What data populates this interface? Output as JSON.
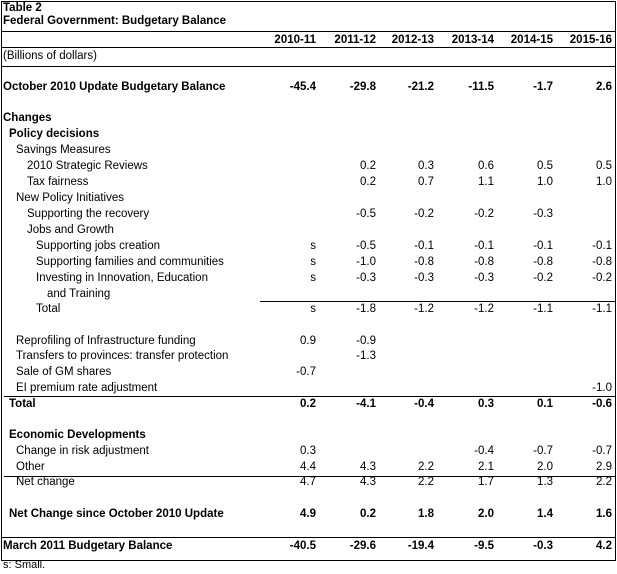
{
  "table": {
    "label": "Table 2",
    "title": "Federal Government: Budgetary Balance",
    "units": "(Billions of dollars)",
    "columns": [
      "2010-11",
      "2011-12",
      "2012-13",
      "2013-14",
      "2014-15",
      "2015-16"
    ],
    "rows": [
      {
        "label": "October 2010 Update Budgetary Balance",
        "indent": 0,
        "bold": true,
        "values": [
          "-45.4",
          "-29.8",
          "-21.2",
          "-11.5",
          "-1.7",
          "2.6"
        ]
      },
      {
        "label": "Changes",
        "indent": 0,
        "bold": true,
        "values": []
      },
      {
        "label": "Policy decisions",
        "indent": 1,
        "bold": true,
        "values": []
      },
      {
        "label": "Savings Measures",
        "indent": 2,
        "bold": false,
        "values": []
      },
      {
        "label": "2010 Strategic Reviews",
        "indent": 3,
        "bold": false,
        "values": [
          "",
          "0.2",
          "0.3",
          "0.6",
          "0.5",
          "0.5"
        ]
      },
      {
        "label": "Tax fairness",
        "indent": 3,
        "bold": false,
        "values": [
          "",
          "0.2",
          "0.7",
          "1.1",
          "1.0",
          "1.0"
        ]
      },
      {
        "label": "New Policy Initiatives",
        "indent": 2,
        "bold": false,
        "values": []
      },
      {
        "label": "Supporting the recovery",
        "indent": 3,
        "bold": false,
        "values": [
          "",
          "-0.5",
          "-0.2",
          "-0.2",
          "-0.3",
          ""
        ]
      },
      {
        "label": "Jobs and Growth",
        "indent": 3,
        "bold": false,
        "values": []
      },
      {
        "label": "Supporting jobs creation",
        "indent": 4,
        "bold": false,
        "values": [
          "s",
          "-0.5",
          "-0.1",
          "-0.1",
          "-0.1",
          "-0.1"
        ]
      },
      {
        "label": "Supporting families and communities",
        "indent": 4,
        "bold": false,
        "values": [
          "s",
          "-1.0",
          "-0.8",
          "-0.8",
          "-0.8",
          "-0.8"
        ]
      },
      {
        "label": "Investing in Innovation, Education",
        "indent": 4,
        "bold": false,
        "values": [
          "s",
          "-0.3",
          "-0.3",
          "-0.3",
          "-0.2",
          "-0.2"
        ]
      },
      {
        "label": "and Training",
        "indent": 5,
        "bold": false,
        "values": []
      },
      {
        "label": "Total",
        "indent": 4,
        "bold": false,
        "values": [
          "s",
          "-1.8",
          "-1.2",
          "-1.2",
          "-1.1",
          "-1.1"
        ]
      },
      {
        "label": "",
        "indent": 0,
        "bold": false,
        "values": []
      },
      {
        "label": "Reprofiling of Infrastructure funding",
        "indent": 2,
        "bold": false,
        "values": [
          "0.9",
          "-0.9",
          "",
          "",
          "",
          ""
        ]
      },
      {
        "label": "Transfers to provinces: transfer protection",
        "indent": 2,
        "bold": false,
        "values": [
          "",
          "-1.3",
          "",
          "",
          "",
          ""
        ]
      },
      {
        "label": "Sale of GM shares",
        "indent": 2,
        "bold": false,
        "values": [
          "-0.7",
          "",
          "",
          "",
          "",
          ""
        ]
      },
      {
        "label": "EI premium rate adjustment",
        "indent": 2,
        "bold": false,
        "values": [
          "",
          "",
          "",
          "",
          "",
          "-1.0"
        ]
      },
      {
        "label": "Total",
        "indent": 1,
        "bold": true,
        "values": [
          "0.2",
          "-4.1",
          "-0.4",
          "0.3",
          "0.1",
          "-0.6"
        ]
      },
      {
        "label": "",
        "indent": 0,
        "bold": false,
        "values": []
      },
      {
        "label": "Economic Developments",
        "indent": 1,
        "bold": true,
        "values": []
      },
      {
        "label": "Change in risk adjustment",
        "indent": 2,
        "bold": false,
        "values": [
          "0.3",
          "",
          "",
          "-0.4",
          "-0.7",
          "-0.7"
        ]
      },
      {
        "label": "Other",
        "indent": 2,
        "bold": false,
        "values": [
          "4.4",
          "4.3",
          "2.2",
          "2.1",
          "2.0",
          "2.9"
        ]
      },
      {
        "label": "Net change",
        "indent": 2,
        "bold": false,
        "values": [
          "4.7",
          "4.3",
          "2.2",
          "1.7",
          "1.3",
          "2.2"
        ]
      },
      {
        "label": "",
        "indent": 0,
        "bold": false,
        "values": []
      },
      {
        "label": "Net Change since October 2010 Update",
        "indent": 1,
        "bold": true,
        "values": [
          "4.9",
          "0.2",
          "1.8",
          "2.0",
          "1.4",
          "1.6"
        ]
      },
      {
        "label": "",
        "indent": 0,
        "bold": false,
        "values": []
      },
      {
        "label": "March 2011 Budgetary Balance",
        "indent": 0,
        "bold": true,
        "values": [
          "-40.5",
          "-29.6",
          "-19.4",
          "-9.5",
          "-0.3",
          "4.2"
        ]
      }
    ],
    "footnote": "s: Small."
  }
}
